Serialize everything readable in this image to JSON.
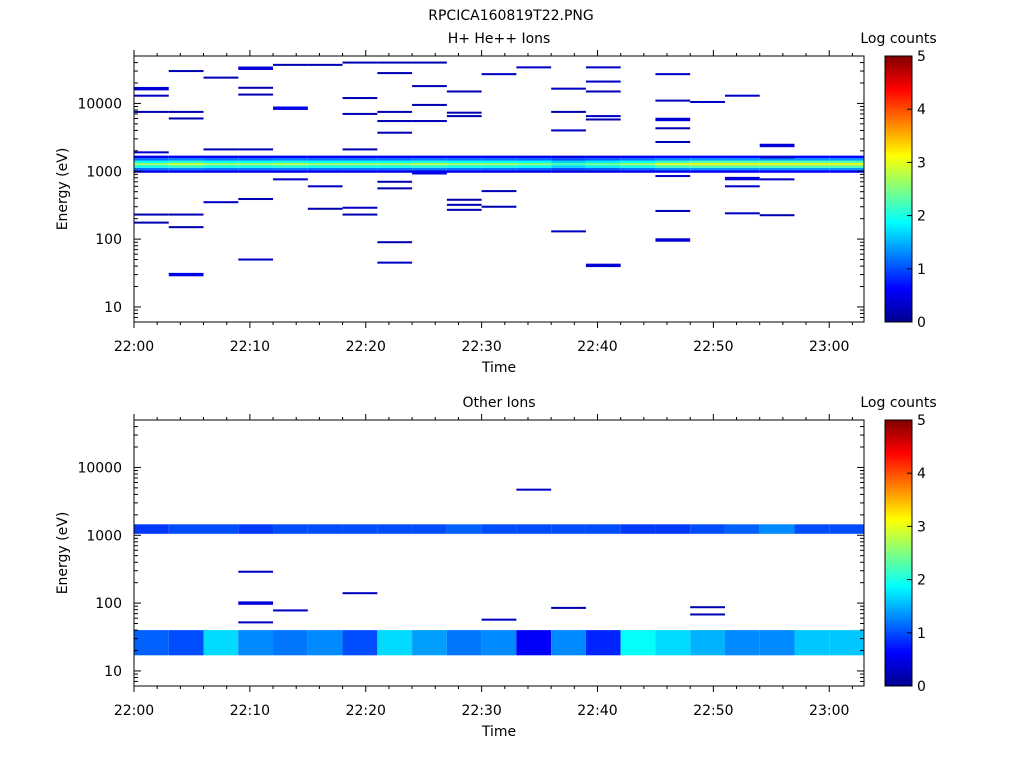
{
  "figure": {
    "title": "RPCICA160819T22.PNG"
  },
  "colormap": [
    "#00008f",
    "#0000ff",
    "#0080ff",
    "#00ffff",
    "#80ff80",
    "#ffff00",
    "#ff8000",
    "#ff0000",
    "#800000"
  ],
  "chart_data": [
    {
      "type": "heatmap",
      "title": "H+ He++ Ions",
      "xlabel": "Time",
      "ylabel": "Energy (eV)",
      "y_scale": "log",
      "xlim": [
        "22:00",
        "23:03"
      ],
      "ylim": [
        6,
        50000
      ],
      "x_ticks": [
        "22:00",
        "22:10",
        "22:20",
        "22:30",
        "22:40",
        "22:50",
        "23:00"
      ],
      "y_ticks": [
        {
          "value": 10,
          "label": "10"
        },
        {
          "value": 100,
          "label": "100"
        },
        {
          "value": 1000,
          "label": "1000"
        },
        {
          "value": 10000,
          "label": "10000"
        }
      ],
      "colorbar": {
        "label": "Log counts",
        "range": [
          0,
          5
        ],
        "ticks": [
          "0",
          "1",
          "2",
          "3",
          "4",
          "5"
        ]
      },
      "x_bins": [
        "22:00",
        "22:03",
        "22:06",
        "22:09",
        "22:12",
        "22:15",
        "22:18",
        "22:21",
        "22:24",
        "22:27",
        "22:30",
        "22:33",
        "22:36",
        "22:39",
        "22:42",
        "22:45",
        "22:48",
        "22:51",
        "22:54",
        "22:57",
        "23:00"
      ],
      "main_band": {
        "energy_low": 950,
        "energy_high": 1700,
        "peak_log_counts": [
          2.6,
          2.8,
          2.6,
          2.6,
          2.7,
          2.6,
          2.6,
          2.6,
          2.7,
          2.6,
          2.6,
          2.5,
          2.2,
          2.4,
          2.6,
          2.9,
          3.0,
          3.0,
          3.0,
          3.0,
          3.0
        ],
        "ramp_energies": [
          1000,
          1080,
          1170,
          1270,
          1380,
          1500,
          1630
        ],
        "ramp_fractions": [
          0.2,
          0.45,
          0.75,
          1.0,
          0.75,
          0.45,
          0.2
        ]
      },
      "sparse_points": [
        [
          0,
          16500,
          0.4
        ],
        [
          0,
          13000,
          0.3
        ],
        [
          0,
          7500,
          0.2
        ],
        [
          0,
          1900,
          0.3
        ],
        [
          0,
          230,
          0.2
        ],
        [
          0,
          175,
          0.2
        ],
        [
          1,
          30000,
          0.2
        ],
        [
          1,
          7500,
          0.2
        ],
        [
          1,
          6000,
          0.2
        ],
        [
          1,
          230,
          0.2
        ],
        [
          1,
          150,
          0.2
        ],
        [
          1,
          30,
          0.5
        ],
        [
          2,
          24000,
          0.2
        ],
        [
          2,
          2100,
          0.2
        ],
        [
          2,
          350,
          0.3
        ],
        [
          3,
          33000,
          0.4
        ],
        [
          3,
          17000,
          0.2
        ],
        [
          3,
          13500,
          0.2
        ],
        [
          3,
          2100,
          0.2
        ],
        [
          3,
          390,
          0.2
        ],
        [
          3,
          50,
          0.3
        ],
        [
          4,
          37000,
          0.2
        ],
        [
          4,
          8500,
          0.5
        ],
        [
          4,
          760,
          0.3
        ],
        [
          5,
          37000,
          0.2
        ],
        [
          5,
          600,
          0.3
        ],
        [
          5,
          280,
          0.2
        ],
        [
          6,
          40000,
          0.2
        ],
        [
          6,
          12000,
          0.2
        ],
        [
          6,
          7000,
          0.2
        ],
        [
          6,
          2100,
          0.2
        ],
        [
          6,
          290,
          0.3
        ],
        [
          6,
          230,
          0.2
        ],
        [
          7,
          40000,
          0.2
        ],
        [
          7,
          28000,
          0.2
        ],
        [
          7,
          7500,
          0.2
        ],
        [
          7,
          5500,
          0.2
        ],
        [
          7,
          3700,
          0.2
        ],
        [
          7,
          700,
          0.2
        ],
        [
          7,
          560,
          0.2
        ],
        [
          7,
          90,
          0.2
        ],
        [
          7,
          45,
          0.3
        ],
        [
          8,
          40000,
          0.2
        ],
        [
          8,
          18000,
          0.2
        ],
        [
          8,
          9500,
          0.2
        ],
        [
          8,
          5500,
          0.2
        ],
        [
          8,
          950,
          0.5
        ],
        [
          9,
          15000,
          0.2
        ],
        [
          9,
          7300,
          0.2
        ],
        [
          9,
          6500,
          0.2
        ],
        [
          9,
          380,
          0.2
        ],
        [
          9,
          320,
          0.2
        ],
        [
          9,
          270,
          0.2
        ],
        [
          10,
          27000,
          0.3
        ],
        [
          10,
          510,
          0.2
        ],
        [
          10,
          300,
          0.2
        ],
        [
          11,
          34000,
          0.3
        ],
        [
          12,
          16500,
          0.3
        ],
        [
          12,
          7500,
          0.2
        ],
        [
          12,
          4000,
          0.3
        ],
        [
          12,
          130,
          0.3
        ],
        [
          13,
          34000,
          0.3
        ],
        [
          13,
          21000,
          0.3
        ],
        [
          13,
          15000,
          0.2
        ],
        [
          13,
          6500,
          0.3
        ],
        [
          13,
          5800,
          0.2
        ],
        [
          13,
          41,
          0.4
        ],
        [
          15,
          27000,
          0.3
        ],
        [
          15,
          11000,
          0.2
        ],
        [
          15,
          5800,
          0.4
        ],
        [
          15,
          4300,
          0.2
        ],
        [
          15,
          2700,
          0.2
        ],
        [
          15,
          850,
          0.3
        ],
        [
          15,
          260,
          0.2
        ],
        [
          15,
          97,
          0.4
        ],
        [
          16,
          10500,
          0.3
        ],
        [
          17,
          13000,
          0.3
        ],
        [
          17,
          780,
          0.4
        ],
        [
          17,
          600,
          0.3
        ],
        [
          17,
          240,
          0.3
        ],
        [
          18,
          2400,
          0.4
        ],
        [
          18,
          1600,
          0.3
        ],
        [
          18,
          760,
          0.3
        ],
        [
          18,
          225,
          0.2
        ]
      ]
    },
    {
      "type": "heatmap",
      "title": "Other Ions",
      "xlabel": "Time",
      "ylabel": "Energy (eV)",
      "y_scale": "log",
      "xlim": [
        "22:00",
        "23:03"
      ],
      "ylim": [
        6,
        50000
      ],
      "x_ticks": [
        "22:00",
        "22:10",
        "22:20",
        "22:30",
        "22:40",
        "22:50",
        "23:00"
      ],
      "y_ticks": [
        {
          "value": 10,
          "label": "10"
        },
        {
          "value": 100,
          "label": "100"
        },
        {
          "value": 1000,
          "label": "1000"
        },
        {
          "value": 10000,
          "label": "10000"
        }
      ],
      "colorbar": {
        "label": "Log counts",
        "range": [
          0,
          5
        ],
        "ticks": [
          "0",
          "1",
          "2",
          "3",
          "4",
          "5"
        ]
      },
      "x_bins": [
        "22:00",
        "22:03",
        "22:06",
        "22:09",
        "22:12",
        "22:15",
        "22:18",
        "22:21",
        "22:24",
        "22:27",
        "22:30",
        "22:33",
        "22:36",
        "22:39",
        "22:42",
        "22:45",
        "22:48",
        "22:51",
        "22:54",
        "22:57",
        "23:00"
      ],
      "high_band": {
        "energy_low": 1050,
        "energy_high": 1450,
        "log_counts": [
          0.9,
          1.0,
          1.0,
          0.9,
          1.0,
          1.0,
          1.0,
          1.0,
          1.0,
          1.1,
          1.0,
          1.0,
          1.0,
          1.0,
          0.9,
          0.9,
          1.0,
          1.1,
          1.3,
          1.0,
          1.0
        ]
      },
      "low_band": {
        "energy_low": 17,
        "energy_high": 40,
        "log_counts": [
          1.1,
          1.0,
          1.7,
          1.3,
          1.2,
          1.3,
          1.0,
          1.7,
          1.4,
          1.2,
          1.3,
          0.6,
          1.3,
          0.8,
          1.9,
          1.7,
          1.5,
          1.3,
          1.3,
          1.6,
          1.6
        ]
      },
      "sparse_points": [
        [
          3,
          290,
          0.3
        ],
        [
          3,
          100,
          0.4
        ],
        [
          3,
          52,
          0.3
        ],
        [
          4,
          78,
          0.3
        ],
        [
          6,
          140,
          0.3
        ],
        [
          10,
          57,
          0.3
        ],
        [
          11,
          4700,
          0.3
        ],
        [
          12,
          85,
          0.2
        ],
        [
          16,
          87,
          0.2
        ],
        [
          16,
          68,
          0.2
        ]
      ]
    }
  ]
}
